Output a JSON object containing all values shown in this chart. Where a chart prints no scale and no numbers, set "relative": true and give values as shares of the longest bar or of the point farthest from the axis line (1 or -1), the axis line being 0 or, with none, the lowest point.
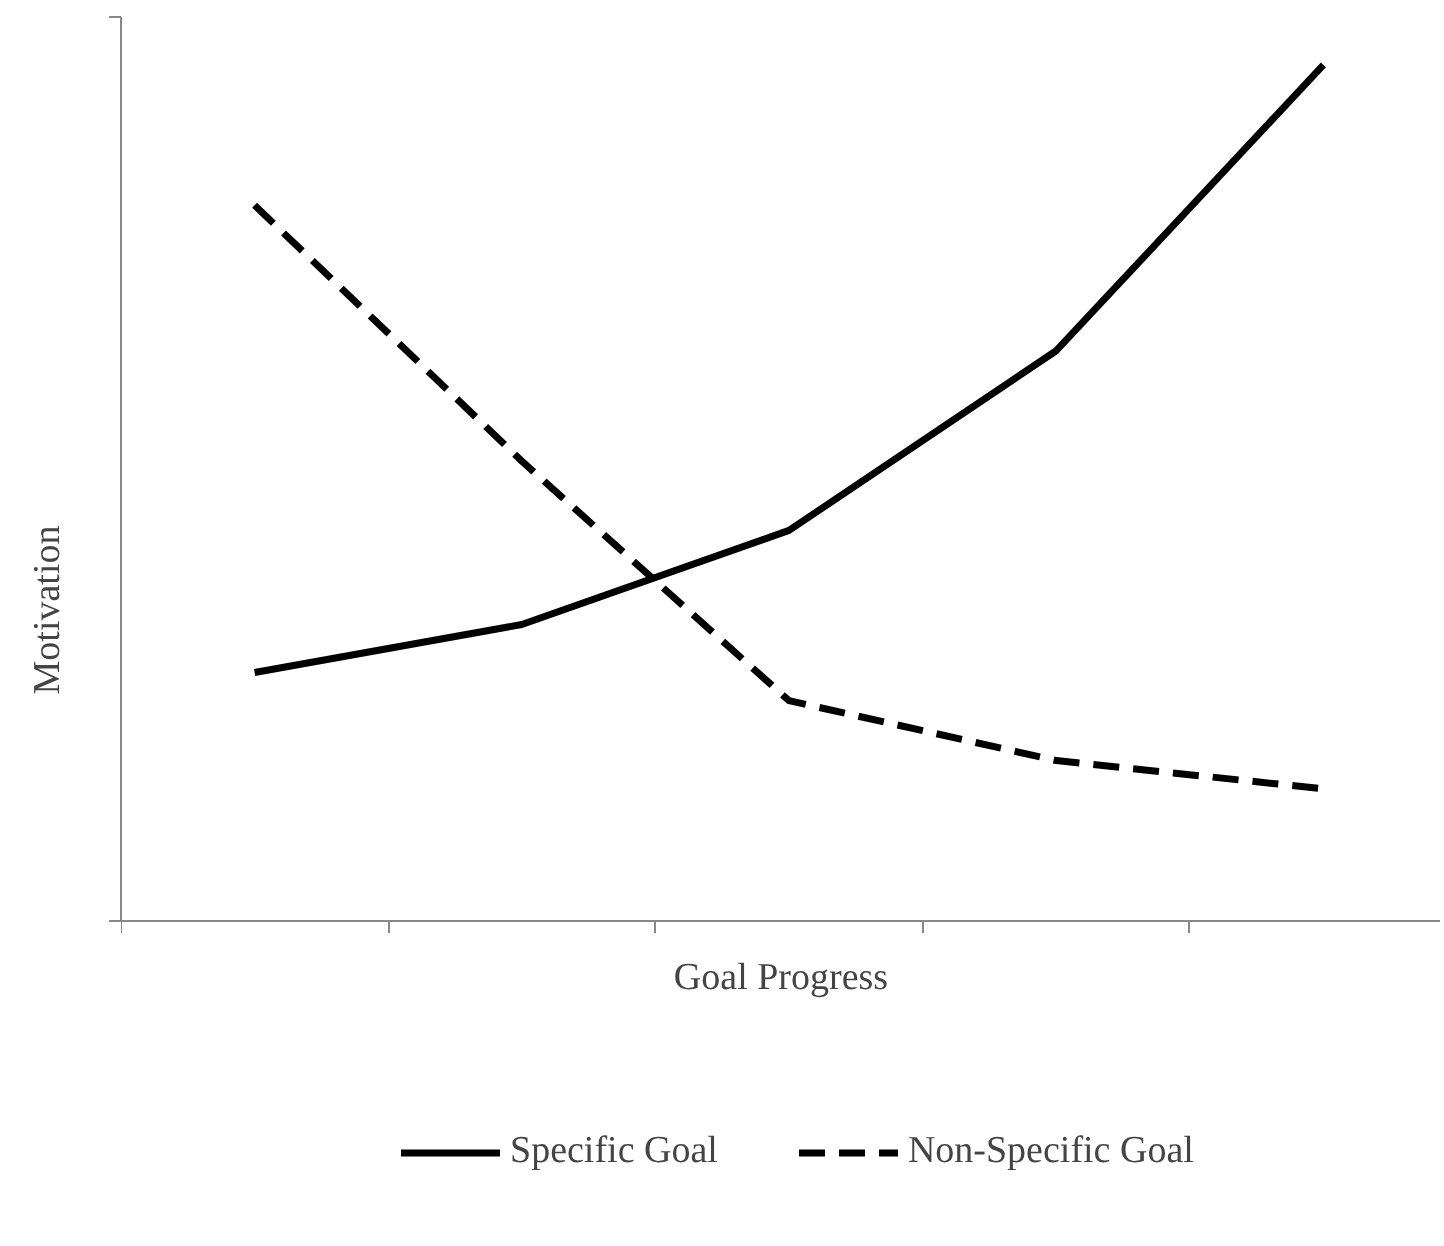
{
  "chart_data": {
    "type": "line",
    "relative": true,
    "xlabel": "Goal Progress",
    "ylabel": "Motivation",
    "categories": [
      null,
      null,
      null,
      null,
      null
    ],
    "series": [
      {
        "name": "Specific Goal",
        "color": "#000000",
        "line_style": "solid",
        "values": [
          0.29,
          0.346,
          0.456,
          0.666,
          1.0
        ]
      },
      {
        "name": "Non-Specific Goal",
        "color": "#000000",
        "line_style": "dashed",
        "values": [
          0.836,
          0.537,
          0.257,
          0.187,
          0.154
        ]
      }
    ],
    "legend": "bottom",
    "grid": false,
    "tick_labels": false,
    "marker": "none"
  }
}
